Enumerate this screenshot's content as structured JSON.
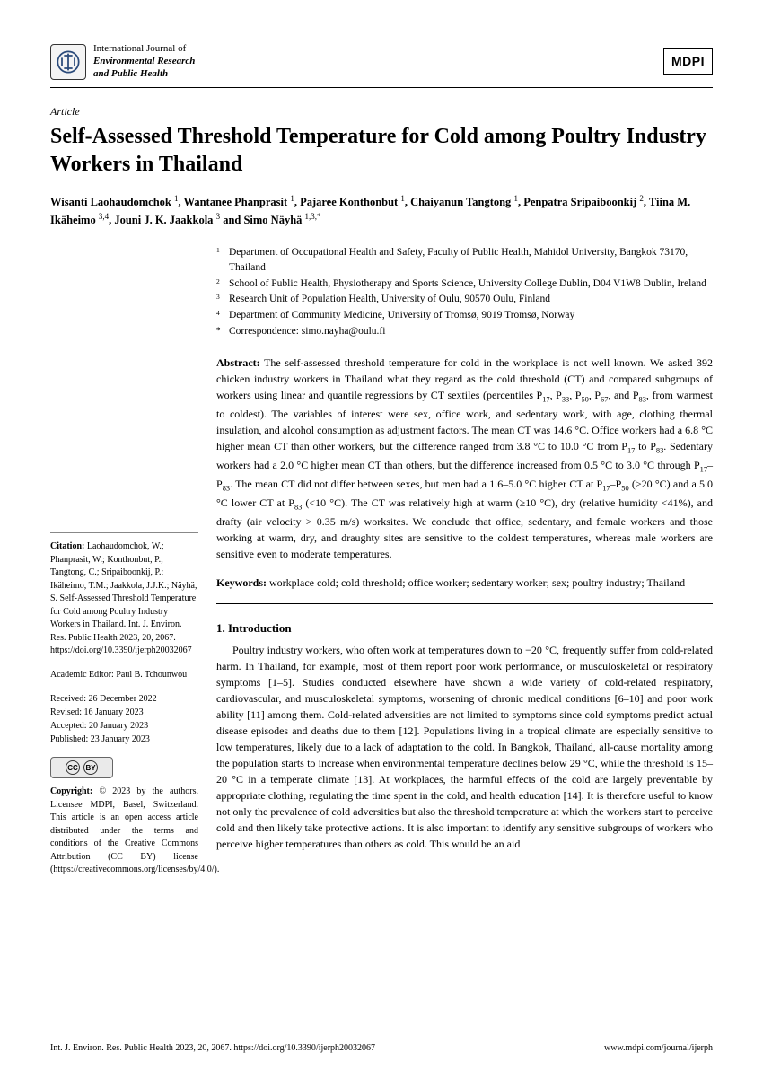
{
  "journal": {
    "line1": "International Journal of",
    "line2": "Environmental Research",
    "line3": "and Public Health"
  },
  "publisher_logo": "MDPI",
  "article_type": "Article",
  "title": "Self-Assessed Threshold Temperature for Cold among Poultry Industry Workers in Thailand",
  "authors_html": "Wisanti Laohaudomchok <sup>1</sup>, Wantanee Phanprasit <sup>1</sup>, Pajaree Konthonbut <sup>1</sup>, Chaiyanun Tangtong <sup>1</sup>, Penpatra Sripaiboonkij <sup>2</sup>, Tiina M. Ikäheimo <sup>3,4</sup>, Jouni J. K. Jaakkola <sup>3</sup> and Simo Näyhä <sup>1,3,*</sup>",
  "affiliations": [
    {
      "marker": "1",
      "text": "Department of Occupational Health and Safety, Faculty of Public Health, Mahidol University, Bangkok 73170, Thailand"
    },
    {
      "marker": "2",
      "text": "School of Public Health, Physiotherapy and Sports Science, University College Dublin, D04 V1W8 Dublin, Ireland"
    },
    {
      "marker": "3",
      "text": "Research Unit of Population Health, University of Oulu, 90570 Oulu, Finland"
    },
    {
      "marker": "4",
      "text": "Department of Community Medicine, University of Tromsø, 9019 Tromsø, Norway"
    },
    {
      "marker": "*",
      "text": "Correspondence: simo.nayha@oulu.fi"
    }
  ],
  "abstract_label": "Abstract:",
  "abstract_html": "The self-assessed threshold temperature for cold in the workplace is not well known. We asked 392 chicken industry workers in Thailand what they regard as the cold threshold (CT) and compared subgroups of workers using linear and quantile regressions by CT sextiles (percentiles P<sub>17</sub>, P<sub>33</sub>, P<sub>50</sub>, P<sub>67</sub>, and P<sub>83</sub>, from warmest to coldest). The variables of interest were sex, office work, and sedentary work, with age, clothing thermal insulation, and alcohol consumption as adjustment factors. The mean CT was 14.6 °C. Office workers had a 6.8 °C higher mean CT than other workers, but the difference ranged from 3.8 °C to 10.0 °C from P<sub>17</sub> to P<sub>83</sub>. Sedentary workers had a 2.0 °C higher mean CT than others, but the difference increased from 0.5 °C to 3.0 °C through P<sub>17</sub>–P<sub>83</sub>. The mean CT did not differ between sexes, but men had a 1.6–5.0 °C higher CT at P<sub>17</sub>–P<sub>50</sub> (>20 °C) and a 5.0 °C lower CT at P<sub>83</sub> (<10 °C). The CT was relatively high at warm (≥10 °C), dry (relative humidity <41%), and drafty (air velocity > 0.35 m/s) worksites. We conclude that office, sedentary, and female workers and those working at warm, dry, and draughty sites are sensitive to the coldest temperatures, whereas male workers are sensitive even to moderate temperatures.",
  "keywords_label": "Keywords:",
  "keywords_text": "workplace cold; cold threshold; office worker; sedentary worker; sex; poultry industry; Thailand",
  "section1_heading": "1. Introduction",
  "section1_para": "Poultry industry workers, who often work at temperatures down to −20 °C, frequently suffer from cold-related harm. In Thailand, for example, most of them report poor work performance, or musculoskeletal or respiratory symptoms [1–5]. Studies conducted elsewhere have shown a wide variety of cold-related respiratory, cardiovascular, and musculoskeletal symptoms, worsening of chronic medical conditions [6–10] and poor work ability [11] among them. Cold-related adversities are not limited to symptoms since cold symptoms predict actual disease episodes and deaths due to them [12]. Populations living in a tropical climate are especially sensitive to low temperatures, likely due to a lack of adaptation to the cold. In Bangkok, Thailand, all-cause mortality among the population starts to increase when environmental temperature declines below 29 °C, while the threshold is 15–20 °C in a temperate climate [13]. At workplaces, the harmful effects of the cold are largely preventable by appropriate clothing, regulating the time spent in the cold, and health education [14]. It is therefore useful to know not only the prevalence of cold adversities but also the threshold temperature at which the workers start to perceive cold and then likely take protective actions. It is also important to identify any sensitive subgroups of workers who perceive higher temperatures than others as cold. This would be an aid",
  "citation": {
    "label": "Citation:",
    "text": "Laohaudomchok, W.; Phanprasit, W.; Konthonbut, P.; Tangtong, C.; Sripaiboonkij, P.; Ikäheimo, T.M.; Jaakkola, J.J.K.; Näyhä, S. Self-Assessed Threshold Temperature for Cold among Poultry Industry Workers in Thailand. Int. J. Environ. Res. Public Health 2023, 20, 2067. https://doi.org/10.3390/ijerph20032067"
  },
  "editor": {
    "label": "Academic Editor:",
    "name": "Paul B. Tchounwou"
  },
  "dates": {
    "received": "Received: 26 December 2022",
    "revised": "Revised: 16 January 2023",
    "accepted": "Accepted: 20 January 2023",
    "published": "Published: 23 January 2023"
  },
  "copyright": {
    "label": "Copyright:",
    "text": "© 2023 by the authors. Licensee MDPI, Basel, Switzerland. This article is an open access article distributed under the terms and conditions of the Creative Commons Attribution (CC BY) license (https://creativecommons.org/licenses/by/4.0/)."
  },
  "footer": {
    "left": "Int. J. Environ. Res. Public Health 2023, 20, 2067. https://doi.org/10.3390/ijerph20032067",
    "right": "www.mdpi.com/journal/ijerph"
  }
}
